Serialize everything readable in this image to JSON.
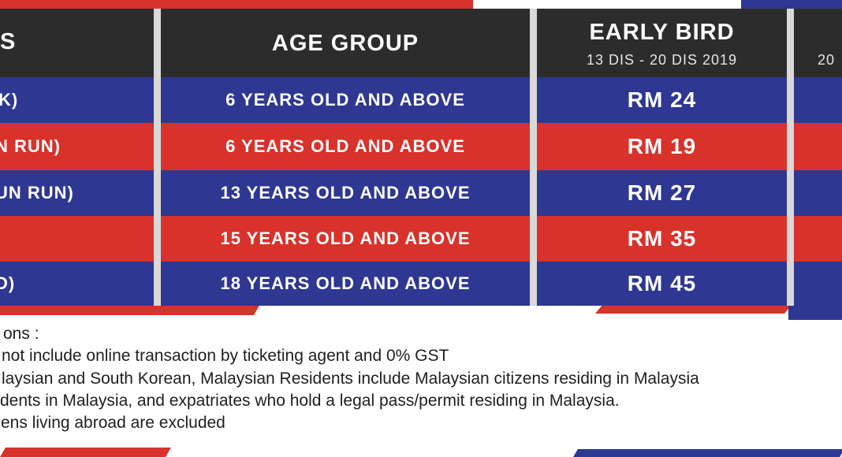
{
  "colors": {
    "blue": "#2e3791",
    "red": "#d8322b",
    "header_bg": "#2c2c2c",
    "separator": "#d9d9d9"
  },
  "header": {
    "category_fragment": "S",
    "age_group": "AGE GROUP",
    "early_bird": "EARLY BIRD",
    "early_bird_dates": "13 DIS - 20 DIS 2019",
    "next_dates_fragment": "20"
  },
  "rows": [
    {
      "category_fragment": "K)",
      "age": "6 YEARS OLD AND ABOVE",
      "price": "RM 24",
      "color": "blue"
    },
    {
      "category_fragment": "N RUN)",
      "age": "6 YEARS OLD AND ABOVE",
      "price": "RM 19",
      "color": "red"
    },
    {
      "category_fragment": "UN RUN)",
      "age": "13 YEARS OLD AND ABOVE",
      "price": "RM 27",
      "color": "blue"
    },
    {
      "category_fragment": "",
      "age": "15 YEARS OLD AND ABOVE",
      "price": "RM 35",
      "color": "red"
    },
    {
      "category_fragment": "D)",
      "age": "18 YEARS OLD AND ABOVE",
      "price": "RM 45",
      "color": "blue"
    }
  ],
  "notes": {
    "line1": "ons :",
    "line2": "not include online transaction by ticketing agent and 0% GST",
    "line3": "laysian and South Korean, Malaysian Residents include Malaysian citizens residing in Malaysia",
    "line4": "dents in Malaysia, and expatriates who hold a legal pass/permit residing in Malaysia.",
    "line5": "ens living abroad are excluded"
  }
}
